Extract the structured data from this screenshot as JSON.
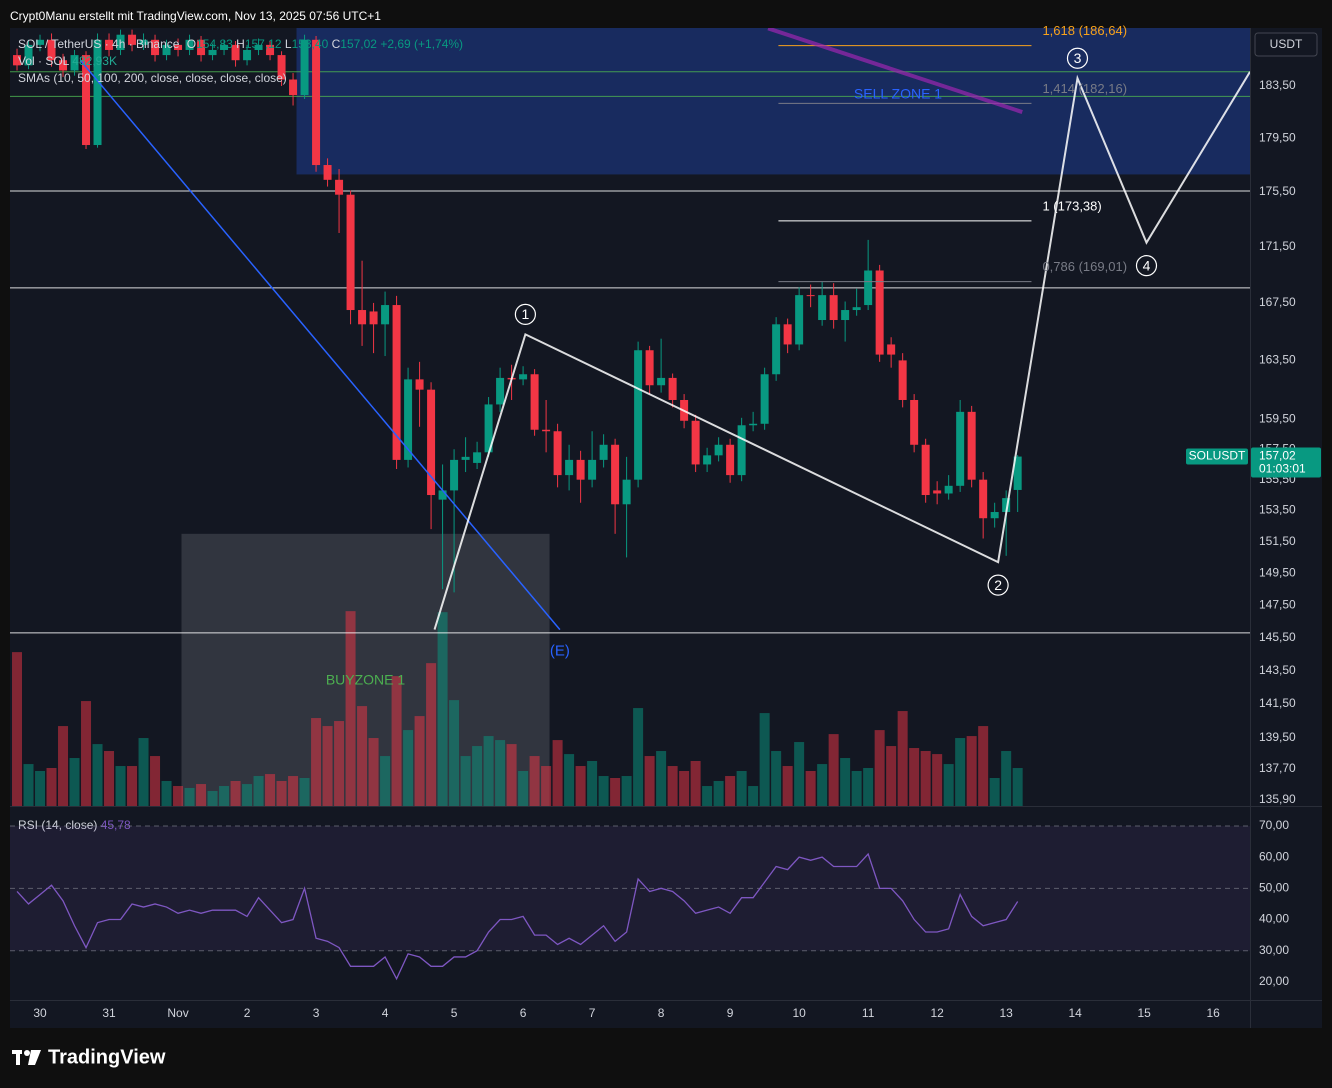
{
  "header": "Crypt0Manu erstellt mit TradingView.com, Nov 13, 2025 07:56 UTC+1",
  "currency_button": "USDT",
  "legend": {
    "symbol": "SOL / TetherUS · 4h · Binance",
    "ohlc": [
      [
        "O",
        "154,83"
      ],
      [
        "H",
        "157,12"
      ],
      [
        "L",
        "153,40"
      ],
      [
        "C",
        "157,02"
      ]
    ],
    "change": "+2,69 (+1,74%)",
    "volume": "Vol · SOL",
    "volume_value": "482,93K",
    "sma": "SMAs (10, 50, 100, 200, close, close, close, close)"
  },
  "chart_data": {
    "type": "candlestick",
    "log_scale": true,
    "xlim": [
      -0.61,
      107.2
    ],
    "xticks": [
      {
        "value": 2,
        "label": "30"
      },
      {
        "value": 8,
        "label": "31"
      },
      {
        "value": 14,
        "label": "Nov"
      },
      {
        "value": 20,
        "label": "2"
      },
      {
        "value": 26,
        "label": "3"
      },
      {
        "value": 32,
        "label": "4"
      },
      {
        "value": 38,
        "label": "5"
      },
      {
        "value": 44,
        "label": "6"
      },
      {
        "value": 50,
        "label": "7"
      },
      {
        "value": 56,
        "label": "8"
      },
      {
        "value": 62,
        "label": "9"
      },
      {
        "value": 68,
        "label": "10"
      },
      {
        "value": 74,
        "label": "11"
      },
      {
        "value": 80,
        "label": "12"
      },
      {
        "value": 86,
        "label": "13"
      },
      {
        "value": 92,
        "label": "14"
      },
      {
        "value": 98,
        "label": "15"
      },
      {
        "value": 104,
        "label": "16"
      }
    ],
    "ylim": [
      135.56,
      188.03
    ],
    "yticks": [
      {
        "value": 183.5,
        "label": "183,50"
      },
      {
        "value": 179.5,
        "label": "179,50"
      },
      {
        "value": 175.5,
        "label": "175,50"
      },
      {
        "value": 171.5,
        "label": "171,50"
      },
      {
        "value": 167.5,
        "label": "167,50"
      },
      {
        "value": 163.5,
        "label": "163,50"
      },
      {
        "value": 159.5,
        "label": "159,50"
      },
      {
        "value": 157.5,
        "label": "157,50"
      },
      {
        "value": 155.5,
        "label": "155,50"
      },
      {
        "value": 153.5,
        "label": "153,50"
      },
      {
        "value": 151.5,
        "label": "151,50"
      },
      {
        "value": 149.5,
        "label": "149,50"
      },
      {
        "value": 147.5,
        "label": "147,50"
      },
      {
        "value": 145.5,
        "label": "145,50"
      },
      {
        "value": 143.5,
        "label": "143,50"
      },
      {
        "value": 141.5,
        "label": "141,50"
      },
      {
        "value": 139.5,
        "label": "139,50"
      },
      {
        "value": 137.7,
        "label": "137,70"
      },
      {
        "value": 135.9,
        "label": "135,90"
      }
    ],
    "open": [
      185.9,
      185.1,
      186.7,
      187.1,
      185.5,
      184.7,
      185.9,
      179.0,
      187.1,
      186.3,
      187.5,
      186.7,
      187.1,
      185.9,
      186.7,
      186.3,
      187.1,
      185.9,
      186.3,
      186.7,
      185.5,
      186.3,
      186.7,
      185.9,
      184.0,
      182.8,
      187.1,
      177.5,
      176.4,
      175.3,
      167.0,
      166.9,
      166.0,
      167.35,
      156.8,
      162.2,
      161.5,
      154.2,
      154.8,
      156.8,
      156.6,
      157.3,
      160.5,
      162.3,
      162.2,
      162.55,
      158.8,
      158.7,
      155.8,
      156.8,
      155.5,
      156.8,
      157.8,
      153.9,
      155.5,
      164.2,
      161.8,
      162.3,
      160.8,
      159.4,
      156.5,
      157.1,
      157.8,
      155.8,
      159.1,
      159.2,
      162.55,
      166.0,
      164.6,
      168.05,
      166.3,
      168.05,
      166.3,
      167.0,
      167.35,
      169.8,
      164.6,
      163.5,
      160.8,
      157.8,
      154.8,
      154.6,
      155.1,
      160.0,
      155.5,
      153.0,
      153.4,
      154.83
    ],
    "high": [
      186.4,
      187.1,
      187.5,
      187.6,
      186.0,
      186.3,
      186.2,
      187.6,
      187.6,
      187.9,
      187.9,
      187.6,
      187.5,
      187.1,
      187.2,
      187.5,
      187.4,
      186.8,
      187.1,
      187.0,
      186.7,
      187.2,
      187.0,
      186.2,
      184.5,
      187.5,
      187.4,
      178.0,
      177.2,
      175.6,
      170.5,
      167.5,
      168.3,
      168.0,
      163.0,
      163.4,
      162.0,
      156.5,
      157.5,
      158.3,
      158.0,
      161.0,
      163.0,
      163.2,
      163.1,
      162.9,
      160.8,
      159.2,
      157.8,
      157.4,
      158.7,
      158.5,
      158.2,
      157.0,
      164.8,
      164.5,
      165.0,
      162.6,
      161.2,
      159.8,
      157.6,
      158.3,
      158.2,
      159.6,
      160.0,
      163.0,
      166.5,
      166.4,
      168.6,
      168.8,
      169.0,
      168.9,
      167.6,
      168.5,
      172.0,
      170.2,
      165.1,
      164.0,
      161.2,
      158.2,
      155.4,
      155.8,
      160.8,
      160.4,
      156.0,
      154.0,
      154.8,
      157.12
    ],
    "low": [
      184.7,
      184.8,
      186.2,
      185.0,
      184.2,
      184.3,
      178.7,
      178.8,
      185.8,
      185.9,
      186.2,
      186.3,
      185.4,
      185.5,
      185.8,
      185.9,
      185.4,
      185.5,
      185.9,
      185.0,
      185.1,
      185.9,
      185.5,
      183.5,
      182.0,
      182.5,
      177.0,
      175.9,
      172.5,
      166.0,
      164.5,
      164.0,
      163.8,
      156.2,
      156.3,
      159.0,
      152.3,
      148.5,
      148.3,
      156.0,
      156.2,
      157.0,
      160.0,
      160.8,
      161.8,
      158.4,
      157.3,
      155.0,
      154.8,
      154.0,
      155.0,
      156.3,
      152.0,
      150.5,
      155.0,
      161.2,
      161.3,
      160.3,
      158.9,
      156.0,
      156.0,
      156.7,
      155.3,
      155.4,
      158.7,
      158.8,
      162.1,
      164.0,
      164.2,
      167.2,
      165.9,
      165.7,
      164.8,
      166.6,
      167.0,
      163.4,
      163.0,
      160.3,
      157.3,
      154.0,
      153.9,
      154.2,
      154.7,
      155.0,
      151.7,
      152.4,
      150.6,
      153.4
    ],
    "close": [
      185.1,
      186.7,
      187.1,
      185.5,
      184.7,
      185.9,
      179.0,
      187.1,
      186.3,
      187.5,
      186.7,
      187.1,
      185.9,
      186.7,
      186.3,
      187.1,
      185.9,
      186.3,
      186.7,
      185.5,
      186.3,
      186.7,
      185.9,
      184.0,
      182.8,
      187.1,
      177.5,
      176.4,
      175.3,
      167.0,
      166.0,
      166.0,
      167.35,
      156.8,
      162.2,
      161.5,
      154.5,
      154.8,
      156.8,
      157.0,
      157.3,
      160.5,
      162.3,
      162.2,
      162.55,
      158.8,
      158.7,
      155.8,
      156.8,
      155.5,
      156.8,
      157.8,
      153.9,
      155.5,
      164.2,
      161.8,
      162.3,
      160.8,
      159.4,
      156.5,
      157.1,
      157.8,
      155.8,
      159.1,
      159.2,
      162.55,
      166.0,
      164.6,
      168.05,
      168.0,
      168.05,
      166.3,
      167.0,
      167.2,
      169.8,
      163.9,
      163.9,
      160.8,
      157.8,
      154.5,
      154.6,
      155.1,
      160.0,
      155.5,
      153.0,
      153.4,
      154.3,
      157.02
    ],
    "colors": {
      "up": "#089981",
      "down": "#f23645"
    },
    "volume": {
      "ylim": [
        0,
        3000000
      ],
      "values": [
        1956000,
        533000,
        445000,
        483000,
        1016000,
        610000,
        1334000,
        787000,
        699000,
        508000,
        508000,
        864000,
        635000,
        318000,
        254000,
        229000,
        279000,
        191000,
        254000,
        318000,
        279000,
        381000,
        406000,
        318000,
        381000,
        356000,
        1118000,
        1016000,
        1080000,
        2477000,
        1270000,
        864000,
        635000,
        1651000,
        965000,
        1143000,
        1816000,
        2464000,
        1346000,
        635000,
        762000,
        889000,
        838000,
        787000,
        445000,
        635000,
        508000,
        838000,
        660000,
        508000,
        572000,
        381000,
        356000,
        381000,
        1245000,
        635000,
        699000,
        508000,
        445000,
        572000,
        254000,
        318000,
        381000,
        445000,
        254000,
        1181000,
        699000,
        508000,
        813000,
        445000,
        533000,
        914000,
        610000,
        445000,
        483000,
        965000,
        762000,
        1207000,
        737000,
        699000,
        660000,
        533000,
        864000,
        889000,
        1016000,
        356000,
        699000,
        482930
      ]
    },
    "rsi": {
      "label": "RSI (14, close)",
      "value_label": "45,78",
      "color": "#7e57c2",
      "ylim": [
        14.2,
        76.4
      ],
      "bands": [
        70,
        50,
        30
      ],
      "yticks": [
        {
          "value": 70,
          "label": "70,00"
        },
        {
          "value": 60,
          "label": "60,00"
        },
        {
          "value": 50,
          "label": "50,00"
        },
        {
          "value": 40,
          "label": "40,00"
        },
        {
          "value": 30,
          "label": "30,00"
        },
        {
          "value": 20,
          "label": "20,00"
        }
      ],
      "values": [
        49,
        45,
        48,
        51,
        46,
        38,
        31,
        39,
        40,
        40,
        45,
        44,
        45,
        44,
        42,
        43,
        42,
        43,
        43,
        43,
        41,
        47,
        43,
        39,
        40,
        50,
        34,
        33,
        31,
        25,
        25,
        25,
        28,
        21,
        29,
        28,
        25,
        25,
        28,
        28,
        30,
        36,
        40,
        40,
        41,
        35,
        35,
        32,
        34,
        32,
        35,
        38,
        33,
        36,
        53,
        49,
        50,
        49,
        46,
        42,
        43,
        44,
        42,
        47,
        47,
        52,
        57,
        56,
        60,
        59,
        60,
        57,
        57,
        57,
        61,
        50,
        50,
        46,
        40,
        36,
        36,
        37,
        48,
        41,
        38,
        39,
        40,
        45.78
      ]
    },
    "drawings": {
      "sell_zone": {
        "label": "SELL ZONE 1",
        "x": [
          24.3,
          107.2
        ],
        "price": [
          176.8,
          188.03
        ],
        "color": "#2962ff"
      },
      "buy_zone": {
        "label": "BUYZONE 1",
        "x": [
          14.3,
          46.3
        ],
        "price": [
          135.56,
          152.0
        ],
        "color": "#787b86"
      },
      "levels": [
        {
          "price": 184.6,
          "color": "#4caf50"
        },
        {
          "price": 182.7,
          "color": "#4caf50"
        },
        {
          "price": 175.57,
          "color": "#ffffff"
        },
        {
          "price": 168.56,
          "color": "#ffffff"
        },
        {
          "price": 145.8,
          "color": "#ffffff"
        }
      ],
      "trend_line": {
        "label": "(E)",
        "x": [
          5.5,
          47.2
        ],
        "price": [
          185.5,
          146.0
        ],
        "color": "#2962ff"
      },
      "purple_line": {
        "x": [
          65.3,
          87.4
        ],
        "price": [
          188.0,
          181.5
        ],
        "color": "#9c27b0"
      },
      "fib": {
        "x": [
          66.2,
          88.2
        ],
        "levels": [
          {
            "label": "1,618 (186,64)",
            "price": 186.64,
            "color": "#f7a21b"
          },
          {
            "label": "1,414 (182,16)",
            "price": 182.16,
            "color": "#787b86"
          },
          {
            "label": "1 (173,38)",
            "price": 173.38,
            "color": "#ffffff"
          },
          {
            "label": "0,786 (169,01)",
            "price": 169.01,
            "color": "#787b86"
          }
        ]
      },
      "wave": {
        "x": [
          36.3,
          44.2,
          85.3,
          92.2,
          98.2,
          107.2
        ],
        "price": [
          146.0,
          165.3,
          150.2,
          184.1,
          171.8,
          184.6
        ],
        "labels": [
          null,
          "1",
          "2",
          "3",
          "4",
          null
        ],
        "color": "#ffffff"
      }
    }
  },
  "price_tag": {
    "symbol": "SOLUSDT",
    "price": "157,02",
    "countdown": "01:03:01"
  },
  "footer": "TradingView"
}
